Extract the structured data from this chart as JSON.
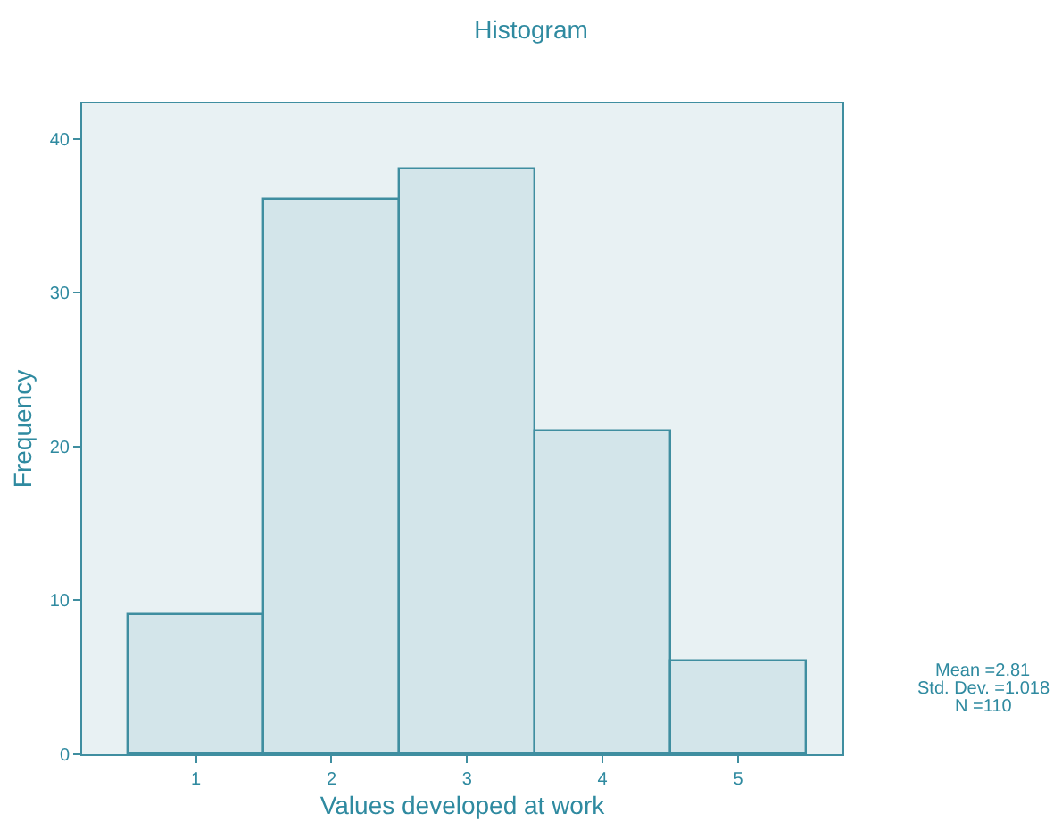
{
  "chart_data": {
    "type": "histogram",
    "title": "Histogram",
    "xlabel": "Values developed at work",
    "ylabel": "Frequency",
    "bins": [
      0.5,
      1.5,
      2.5,
      3.5,
      4.5,
      5.5
    ],
    "values": [
      9,
      36,
      38,
      21,
      6
    ],
    "color": "#d3e5ea",
    "xlim": [
      0.16,
      5.77
    ],
    "xticks": [
      1,
      2,
      3,
      4,
      5
    ],
    "ylim": [
      0,
      42.3
    ],
    "yticks": [
      0,
      10,
      20,
      30,
      40
    ],
    "grid": false,
    "annotations": [
      "Mean =2.81",
      "Std. Dev. =1.018",
      "N =110"
    ]
  }
}
